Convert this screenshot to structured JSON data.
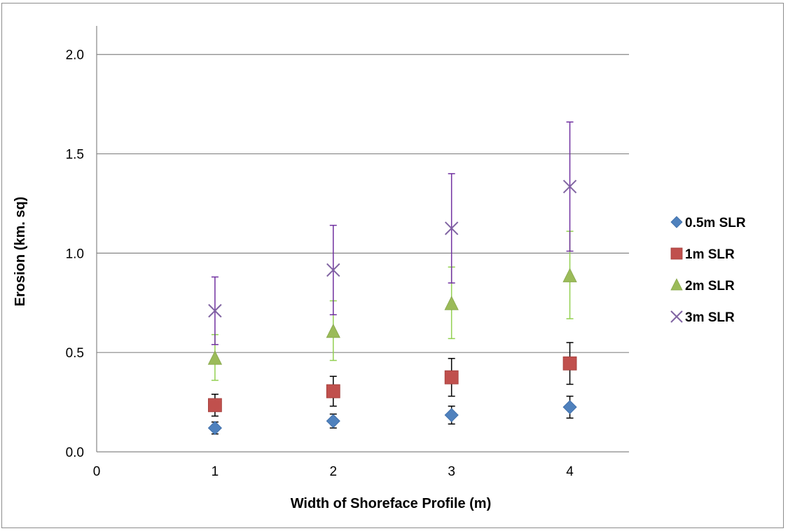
{
  "chart_data": {
    "type": "scatter",
    "title": "",
    "xlabel": "Width of Shoreface Profile (m)",
    "ylabel": "Erosion (km. sq)",
    "xlim": [
      0,
      4.5
    ],
    "ylim": [
      0,
      2.2
    ],
    "xticks": [
      "0",
      "1",
      "2",
      "3",
      "4"
    ],
    "yticks": [
      "0.0",
      "0.5",
      "1.0",
      "1.5",
      "2.0"
    ],
    "grid": "horizontal",
    "legend_position": "right",
    "x": [
      1,
      2,
      3,
      4
    ],
    "series": [
      {
        "name": "0.5m SLR",
        "marker": "diamond",
        "color": "#4f81bd",
        "error_color": "#000000",
        "values": [
          0.12,
          0.155,
          0.185,
          0.225
        ],
        "error_low": [
          0.09,
          0.12,
          0.14,
          0.17
        ],
        "error_high": [
          0.15,
          0.19,
          0.23,
          0.28
        ]
      },
      {
        "name": "1m SLR",
        "marker": "square",
        "color": "#c0504d",
        "error_color": "#000000",
        "values": [
          0.235,
          0.305,
          0.375,
          0.445
        ],
        "error_low": [
          0.18,
          0.23,
          0.28,
          0.34
        ],
        "error_high": [
          0.29,
          0.38,
          0.47,
          0.55
        ]
      },
      {
        "name": "2m SLR",
        "marker": "triangle",
        "color": "#9bbb59",
        "error_color": "#92d050",
        "values": [
          0.47,
          0.605,
          0.745,
          0.885
        ],
        "error_low": [
          0.36,
          0.46,
          0.57,
          0.67
        ],
        "error_high": [
          0.59,
          0.76,
          0.93,
          1.11
        ]
      },
      {
        "name": "3m SLR",
        "marker": "x",
        "color": "#8064a2",
        "error_color": "#7030a0",
        "values": [
          0.71,
          0.915,
          1.125,
          1.335
        ],
        "error_low": [
          0.54,
          0.69,
          0.85,
          1.01
        ],
        "error_high": [
          0.88,
          1.14,
          1.4,
          1.66
        ]
      }
    ]
  }
}
